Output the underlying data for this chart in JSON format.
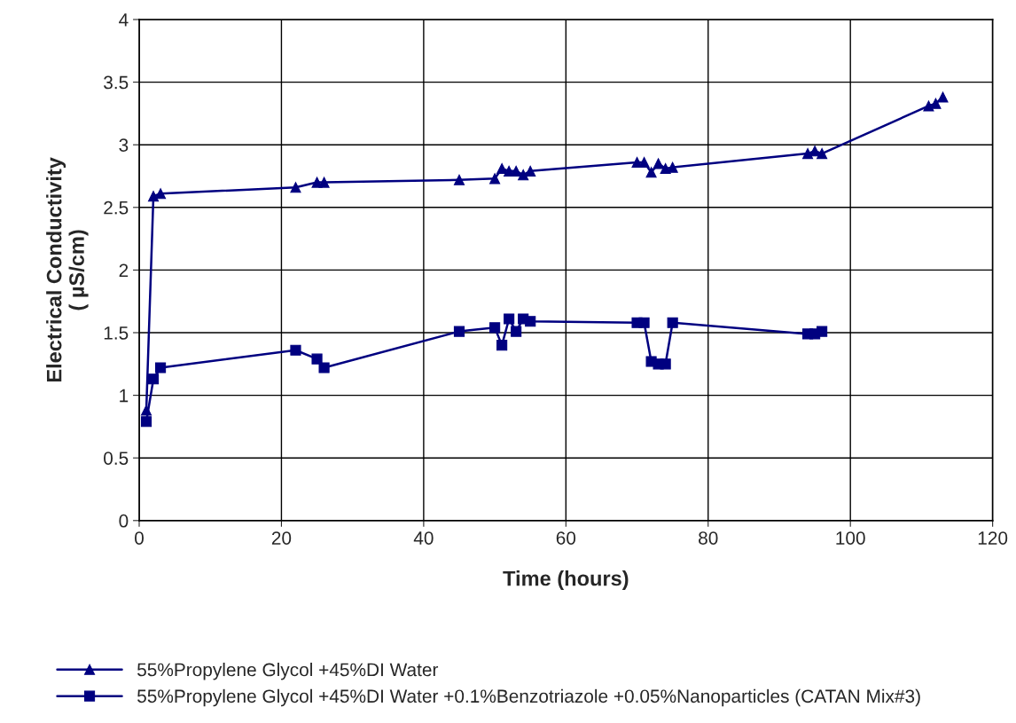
{
  "chart_data": {
    "type": "line",
    "xlabel": "Time (hours)",
    "ylabel": "Electrical Conductivity\n( µS/cm)",
    "xlim": [
      0,
      120
    ],
    "xticks": [
      0,
      20,
      40,
      60,
      80,
      100,
      120
    ],
    "ylim": [
      0,
      4
    ],
    "yticks": [
      0,
      0.5,
      1,
      1.5,
      2,
      2.5,
      3,
      3.5,
      4
    ],
    "grid": true,
    "legend": "bottom",
    "line_style": "solid",
    "series": [
      {
        "name": "55%Propylene Glycol +45%DI Water",
        "color": "#000080",
        "marker": "triangle",
        "x": [
          1,
          2,
          3,
          22,
          25,
          26,
          45,
          50,
          51,
          52,
          53,
          54,
          55,
          70,
          71,
          72,
          73,
          74,
          75,
          94,
          95,
          96,
          111,
          112,
          113
        ],
        "values": [
          0.88,
          2.59,
          2.61,
          2.66,
          2.7,
          2.7,
          2.72,
          2.73,
          2.81,
          2.79,
          2.79,
          2.76,
          2.79,
          2.86,
          2.86,
          2.78,
          2.85,
          2.81,
          2.82,
          2.93,
          2.95,
          2.93,
          3.31,
          3.33,
          3.38
        ]
      },
      {
        "name": "55%Propylene Glycol +45%DI Water +0.1%Benzotriazole +0.05%Nanoparticles (CATAN Mix#3)",
        "color": "#000080",
        "marker": "square",
        "x": [
          1,
          2,
          3,
          22,
          25,
          26,
          45,
          50,
          51,
          52,
          53,
          54,
          55,
          70,
          71,
          72,
          73,
          74,
          75,
          94,
          95,
          96
        ],
        "values": [
          0.79,
          1.13,
          1.22,
          1.36,
          1.29,
          1.22,
          1.51,
          1.54,
          1.4,
          1.61,
          1.51,
          1.61,
          1.59,
          1.58,
          1.58,
          1.27,
          1.25,
          1.25,
          1.58,
          1.49,
          1.49,
          1.51
        ]
      }
    ]
  }
}
